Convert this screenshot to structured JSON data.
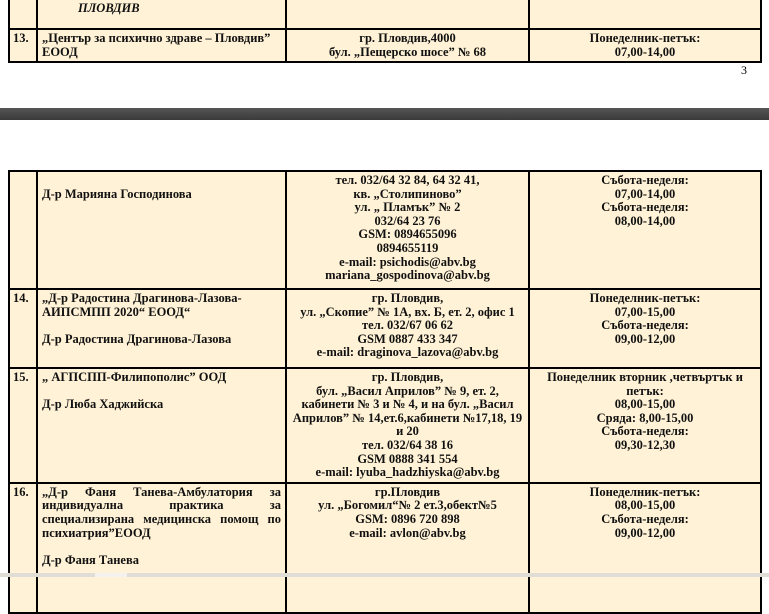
{
  "page1": {
    "header": {
      "city": "ПЛОВДИВ"
    },
    "rows": [
      {
        "num": "13.",
        "name": [
          "„Център за психично здраве – Пловдив”",
          "ЕООД"
        ],
        "address": [
          "гр. Пловдив,4000",
          "бул. „Пещерско шосе” № 68"
        ],
        "hours": [
          "Понеделник-петък:",
          "07,00-14,00"
        ]
      }
    ],
    "page_number": "3"
  },
  "page2": {
    "rows": [
      {
        "num": "",
        "name": [
          "Д-р Марияна Господинова"
        ],
        "address": [
          "тел. 032/64 32 84, 64 32 41,",
          "кв. „Столипиново”",
          "ул. „ Пламък” № 2",
          "032/64 23 76",
          "GSM: 0894655096",
          "0894655119",
          "e-mail: psichodis@abv.bg",
          "mariana_gospodinova@abv.bg"
        ],
        "hours": [
          "Събота-неделя:",
          "07,00-14,00",
          "Събота-неделя:",
          "08,00-14,00"
        ]
      },
      {
        "num": "14.",
        "name": [
          "„Д-р Радостина  Драгинова-Лазова-",
          "АИПСМПП 2020“ ЕООД“",
          "",
          "Д-р Радостина  Драгинова-Лазова"
        ],
        "address": [
          "гр. Пловдив,",
          "ул. „Скопие” № 1А, вх. Б, ет. 2, офис 1",
          "тел. 032/67 06 62",
          "GSM 0887 433 347",
          "e-mail: draginova_lazova@abv.bg"
        ],
        "hours": [
          "Понеделник-петък:",
          "07,00-15,00",
          "Събота-неделя:",
          "09,00-12,00"
        ]
      },
      {
        "num": "15.",
        "name": [
          "„ АГПСПП-Филипополис” ООД",
          "",
          "Д-р Люба Хаджийска"
        ],
        "address": [
          "гр. Пловдив,",
          "бул. „Васил Априлов” № 9, ет. 2,",
          "кабинети № 3 и № 4, и на бул. „Васил",
          "Априлов” № 14,ет.6,кабинети №17,18, 19",
          "и 20",
          "тел. 032/64 38 16",
          "GSM 0888 341 554",
          "e-mail: lyuba_hadzhiyska@abv.bg"
        ],
        "hours": [
          "Понеделник вторник ,четвъртък и",
          "петък:",
          "08,00-15,00",
          "Сряда: 8,00-15,00",
          "Събота-неделя:",
          "09,30-12,30"
        ]
      },
      {
        "num": "16.",
        "name": [
          "„Д-р Фаня Танева-Амбулатория за индивидуална практика за специализирана медицинска помощ по психиатрия”ЕООД",
          "",
          "Д-р Фаня Танева"
        ],
        "address": [
          "гр.Пловдив",
          "ул. „Богомил“№ 2 ет.3,обект№5",
          "GSM: 0896 720 898",
          "e-mail: avlon@abv.bg"
        ],
        "hours": [
          "Понеделник-петък:",
          "08,00-15,00",
          "Събота-неделя:",
          "09,00-12,00"
        ]
      }
    ]
  },
  "colors": {
    "cell_background": "#fff2d6",
    "separator": "#454545"
  }
}
